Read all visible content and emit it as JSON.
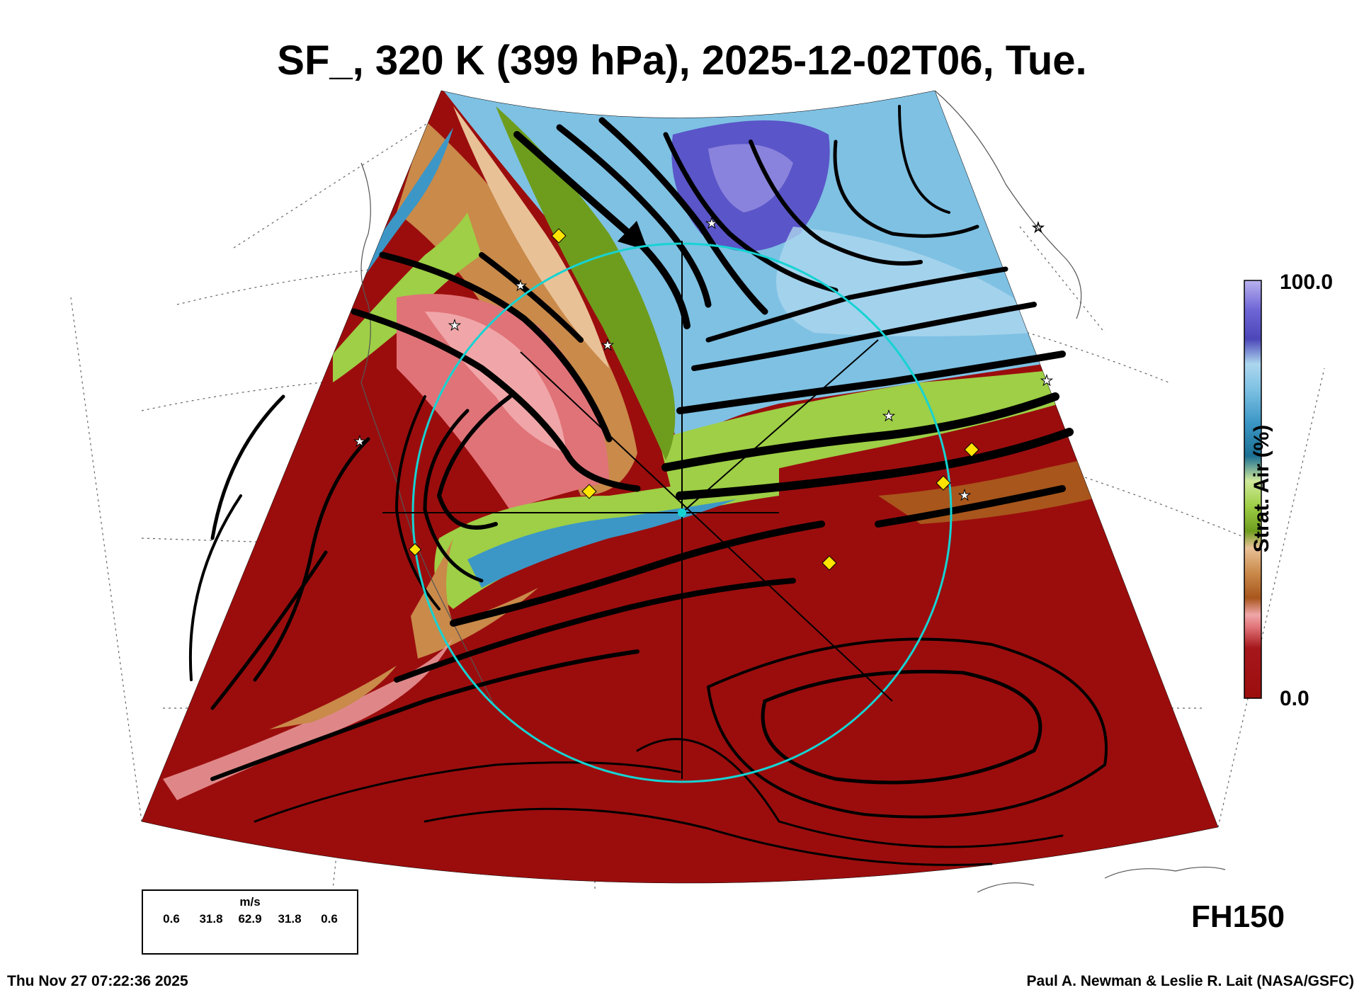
{
  "title": "SF_, 320 K (399 hPa), 2025-12-02T06, Tue.",
  "colorbar": {
    "label": "Strat. Air (%)",
    "max_label": "100.0",
    "min_label": "0.0",
    "range": [
      0,
      100
    ],
    "colors": [
      "#9b0d0d",
      "#a5171b",
      "#e07378",
      "#f0a6a8",
      "#a8561c",
      "#c98a4a",
      "#e9c197",
      "#6e9d1e",
      "#9ecf46",
      "#cfe99a",
      "#1b6f93",
      "#3c97c6",
      "#7ec1e3",
      "#acd6ee",
      "#4c46b8",
      "#6f66d6",
      "#b9b2ee"
    ]
  },
  "map": {
    "stream_color": "#000000",
    "circle_color": "#16d3d3",
    "marker_colors": {
      "diamond": "#ffe400",
      "star": "#ffffff"
    }
  },
  "wind_legend": {
    "unit": "m/s",
    "labels": [
      "0.6",
      "31.8",
      "62.9",
      "31.8",
      "0.6"
    ]
  },
  "forecast_hour": "FH150",
  "footer": {
    "timestamp": "Thu Nov 27 07:22:36 2025",
    "credit": "Paul A. Newman & Leslie R. Lait (NASA/GSFC)"
  }
}
